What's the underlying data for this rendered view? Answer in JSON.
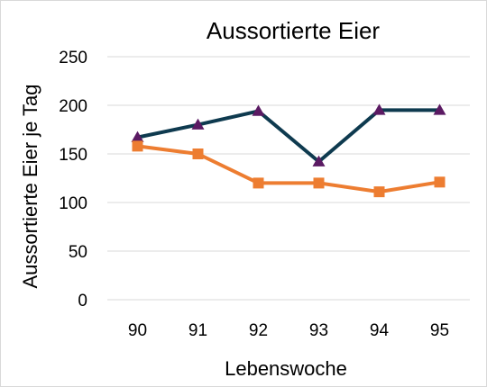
{
  "chart_data": {
    "type": "line",
    "title": "Aussortierte Eier",
    "xlabel": "Lebenswoche",
    "ylabel": "Aussortierte Eier je Tag",
    "categories": [
      "90",
      "91",
      "92",
      "93",
      "94",
      "95"
    ],
    "ylim": [
      0,
      250
    ],
    "yticks": [
      "0",
      "50",
      "100",
      "150",
      "200",
      "250"
    ],
    "grid": true,
    "legend": "none",
    "series": [
      {
        "values": [
          167,
          180,
          194,
          142,
          195,
          195
        ],
        "color": "#0e3a4f",
        "marker": "triangle",
        "marker_color": "#5b1a63"
      },
      {
        "values": [
          158,
          150,
          120,
          120,
          111,
          121
        ],
        "color": "#ed7d31",
        "marker": "square",
        "marker_color": "#ed7d31"
      }
    ]
  }
}
